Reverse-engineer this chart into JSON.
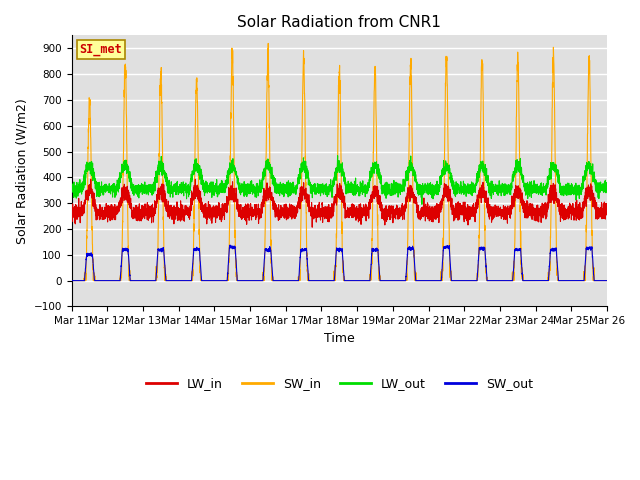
{
  "title": "Solar Radiation from CNR1",
  "xlabel": "Time",
  "ylabel": "Solar Radiation (W/m2)",
  "ylim": [
    -100,
    950
  ],
  "yticks": [
    -100,
    0,
    100,
    200,
    300,
    400,
    500,
    600,
    700,
    800,
    900
  ],
  "x_labels": [
    "Mar 11",
    "Mar 12",
    "Mar 13",
    "Mar 14",
    "Mar 15",
    "Mar 16",
    "Mar 17",
    "Mar 18",
    "Mar 19",
    "Mar 20",
    "Mar 21",
    "Mar 22",
    "Mar 23",
    "Mar 24",
    "Mar 25",
    "Mar 26"
  ],
  "n_days": 15,
  "colors": {
    "LW_in": "#dd0000",
    "SW_in": "#ffaa00",
    "LW_out": "#00dd00",
    "SW_out": "#0000dd"
  },
  "annotation_text": "SI_met",
  "annotation_color": "#cc0000",
  "annotation_bg": "#ffff99",
  "annotation_border": "#aa8800",
  "background_color": "#e0e0e0",
  "grid_color": "#ffffff",
  "title_fontsize": 11,
  "label_fontsize": 9,
  "tick_fontsize": 7.5
}
